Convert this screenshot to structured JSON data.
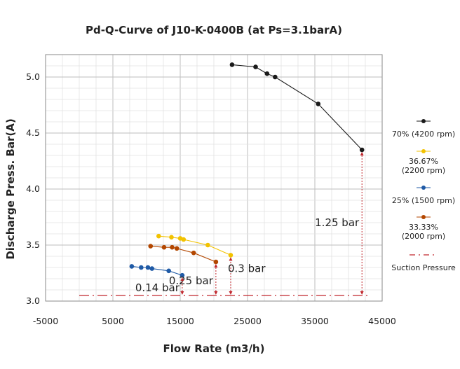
{
  "chart_data": {
    "type": "line",
    "title": "Pd-Q-Curve of J10-K-0400B (at Ps=3.1barA)",
    "xlabel": "Flow Rate (m3/h)",
    "ylabel": "Discharge Press. Bar(A)",
    "xlim": [
      -5000,
      45000
    ],
    "ylim": [
      3.0,
      5.2
    ],
    "x_ticks": [
      -5000,
      5000,
      15000,
      25000,
      35000,
      45000
    ],
    "x_tick_labels": [
      "-5000",
      "5000",
      "15000",
      "25000",
      "35000",
      "45000"
    ],
    "y_ticks": [
      3.0,
      3.5,
      4.0,
      4.5,
      5.0
    ],
    "y_tick_labels": [
      "3.0",
      "3.5",
      "4.0",
      "4.5",
      "5.0"
    ],
    "x_minor_step": 2500,
    "y_minor_step": 0.1,
    "grid": true,
    "legend_position": "right",
    "series": [
      {
        "name": "70% (4200 rpm)",
        "color": "#1a1a1a",
        "x": [
          22700,
          26200,
          27900,
          29100,
          35500,
          42000
        ],
        "y": [
          5.11,
          5.09,
          5.03,
          5.0,
          4.76,
          4.35
        ]
      },
      {
        "name": "36.67% (2200 rpm)",
        "color": "#f2c200",
        "x": [
          11800,
          13700,
          15000,
          15500,
          19100,
          22500
        ],
        "y": [
          3.58,
          3.57,
          3.56,
          3.55,
          3.5,
          3.41
        ]
      },
      {
        "name": "25% (1500 rpm)",
        "color": "#1f5aa6",
        "x": [
          7800,
          9200,
          10200,
          10800,
          13300,
          15300
        ],
        "y": [
          3.31,
          3.3,
          3.3,
          3.29,
          3.27,
          3.23
        ]
      },
      {
        "name": "33.33% (2000 rpm)",
        "color": "#b34700",
        "x": [
          10600,
          12600,
          13800,
          14500,
          17000,
          20300
        ],
        "y": [
          3.49,
          3.48,
          3.48,
          3.47,
          3.43,
          3.35
        ]
      }
    ],
    "suction_line": {
      "name": "Suction Pressure",
      "color": "#c0262c",
      "y": 3.05,
      "x_range": [
        0,
        43000
      ]
    },
    "annotations": [
      {
        "text": "1.25 bar",
        "x": 42000,
        "y_from": 3.05,
        "y_to": 4.35,
        "label_side": "left"
      },
      {
        "text": "0.3 bar",
        "x": 22500,
        "y_from": 3.05,
        "y_to": 3.41,
        "label_side": "right"
      },
      {
        "text": "0.25 bar",
        "x": 20300,
        "y_from": 3.05,
        "y_to": 3.35,
        "label_side": "left"
      },
      {
        "text": "0.14 bar",
        "x": 15300,
        "y_from": 3.05,
        "y_to": 3.23,
        "label_side": "left"
      }
    ]
  }
}
